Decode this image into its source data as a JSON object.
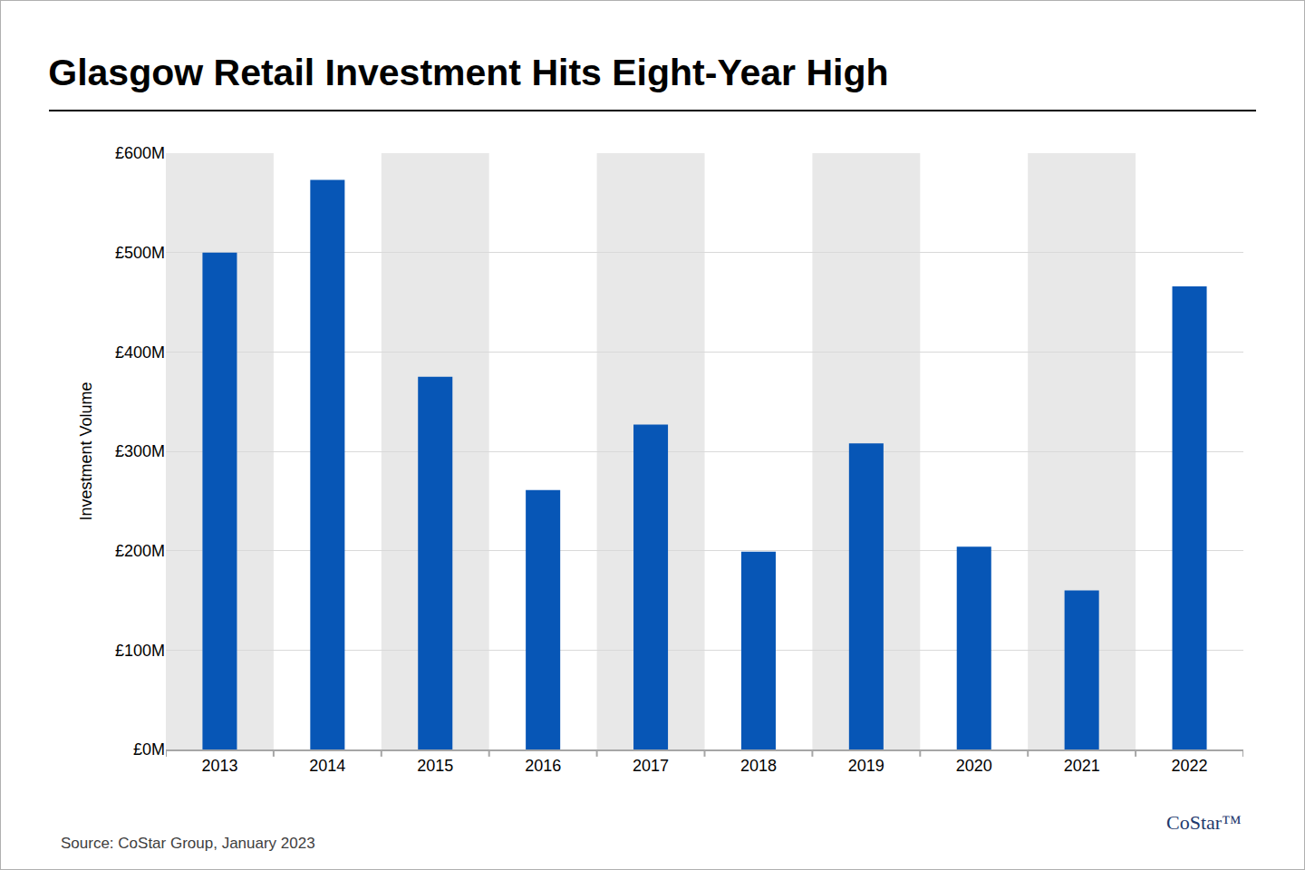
{
  "chart_data": {
    "type": "bar",
    "title": "Glasgow Retail Investment Hits Eight-Year High",
    "y_label": "Investment Volume",
    "categories": [
      "2013",
      "2014",
      "2015",
      "2016",
      "2017",
      "2018",
      "2019",
      "2020",
      "2021",
      "2022"
    ],
    "values": [
      500,
      573,
      375,
      261,
      327,
      199,
      308,
      204,
      160,
      466
    ],
    "color": "#0756b6",
    "ylim": [
      0,
      600
    ],
    "yticks": [
      {
        "value": 0,
        "label": "£0M"
      },
      {
        "value": 100,
        "label": "£100M"
      },
      {
        "value": 200,
        "label": "£200M"
      },
      {
        "value": 300,
        "label": "£300M"
      },
      {
        "value": 400,
        "label": "£400M"
      },
      {
        "value": 500,
        "label": "£500M"
      },
      {
        "value": 600,
        "label": "£600M"
      }
    ],
    "grid": true,
    "annotations": [
      "Source: CoStar Group, January 2023",
      "CoStar™"
    ]
  }
}
